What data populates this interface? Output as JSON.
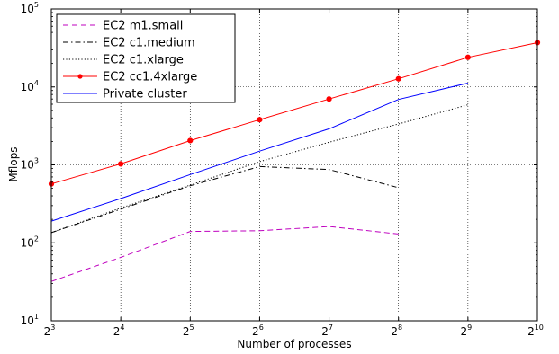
{
  "chart_data": {
    "type": "line",
    "xlabel": "Number of processes",
    "ylabel": "Mflops",
    "x_scale": "log2",
    "y_scale": "log10",
    "xlim": [
      8,
      1024
    ],
    "ylim": [
      10,
      100000
    ],
    "x_ticks": [
      {
        "base": "2",
        "exp": "3",
        "value": 8
      },
      {
        "base": "2",
        "exp": "4",
        "value": 16
      },
      {
        "base": "2",
        "exp": "5",
        "value": 32
      },
      {
        "base": "2",
        "exp": "6",
        "value": 64
      },
      {
        "base": "2",
        "exp": "7",
        "value": 128
      },
      {
        "base": "2",
        "exp": "8",
        "value": 256
      },
      {
        "base": "2",
        "exp": "9",
        "value": 512
      },
      {
        "base": "2",
        "exp": "10",
        "value": 1024
      }
    ],
    "y_ticks": [
      {
        "base": "10",
        "exp": "1",
        "value": 10
      },
      {
        "base": "10",
        "exp": "2",
        "value": 100
      },
      {
        "base": "10",
        "exp": "3",
        "value": 1000
      },
      {
        "base": "10",
        "exp": "4",
        "value": 10000
      },
      {
        "base": "10",
        "exp": "5",
        "value": 100000
      }
    ],
    "grid": true,
    "legend_position": "top-left",
    "series": [
      {
        "name": "EC2 m1.small",
        "color": "#bf00bf",
        "style": "dashed",
        "x": [
          8,
          16,
          32,
          64,
          128,
          256
        ],
        "y": [
          32,
          65,
          140,
          143,
          162,
          130
        ]
      },
      {
        "name": "EC2 c1.medium",
        "color": "#000000",
        "style": "dashdot",
        "x": [
          8,
          16,
          32,
          64,
          128,
          256
        ],
        "y": [
          135,
          270,
          540,
          950,
          870,
          510
        ]
      },
      {
        "name": "EC2 c1.xlarge",
        "color": "#000000",
        "style": "dotted",
        "x": [
          8,
          16,
          32,
          64,
          128,
          256,
          512
        ],
        "y": [
          135,
          280,
          550,
          1100,
          1950,
          3350,
          5900
        ]
      },
      {
        "name": "EC2 cc1.4xlarge",
        "color": "#ff0000",
        "style": "solid-marker",
        "x": [
          8,
          16,
          32,
          64,
          128,
          256,
          512,
          1024
        ],
        "y": [
          570,
          1030,
          2050,
          3800,
          7000,
          12700,
          24000,
          37000
        ]
      },
      {
        "name": "Private cluster",
        "color": "#0000ff",
        "style": "solid",
        "x": [
          8,
          16,
          32,
          64,
          128,
          256,
          512
        ],
        "y": [
          190,
          370,
          750,
          1500,
          2900,
          6900,
          11200
        ]
      }
    ]
  }
}
